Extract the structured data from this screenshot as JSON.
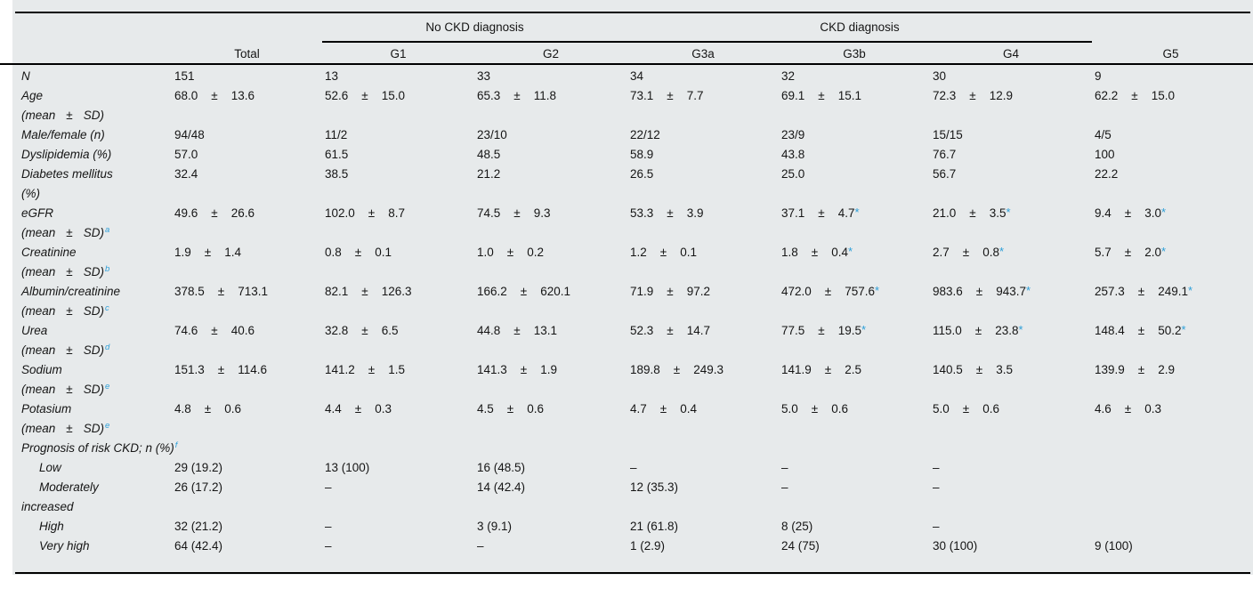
{
  "colors": {
    "accent_blue": "#2d9fd8",
    "table_background": "#e7eaeb",
    "rule": "#000000"
  },
  "table": {
    "pm_sign": "±",
    "dash": "–",
    "groups": [
      {
        "label": "No CKD diagnosis",
        "columns": [
          "G1",
          "G2"
        ]
      },
      {
        "label": "CKD diagnosis",
        "columns": [
          "G3a",
          "G3b",
          "G4"
        ]
      }
    ],
    "columns": [
      "Total",
      "G1",
      "G2",
      "G3a",
      "G3b",
      "G4",
      "G5"
    ],
    "rows": [
      {
        "label": "N",
        "cells": [
          {
            "t": "151"
          },
          {
            "t": "13"
          },
          {
            "t": "33"
          },
          {
            "t": "34"
          },
          {
            "t": "32"
          },
          {
            "t": "30"
          },
          {
            "t": "9"
          }
        ]
      },
      {
        "label": "Age",
        "label2": "(mean ± SD)",
        "cells": [
          {
            "m": "68.0",
            "sd": "13.6"
          },
          {
            "m": "52.6",
            "sd": "15.0"
          },
          {
            "m": "65.3",
            "sd": "11.8"
          },
          {
            "m": "73.1",
            "sd": "7.7"
          },
          {
            "m": "69.1",
            "sd": "15.1"
          },
          {
            "m": "72.3",
            "sd": "12.9"
          },
          {
            "m": "62.2",
            "sd": "15.0"
          }
        ]
      },
      {
        "label": "Male/female (n)",
        "cells": [
          {
            "t": "94/48"
          },
          {
            "t": "11/2"
          },
          {
            "t": "23/10"
          },
          {
            "t": "22/12"
          },
          {
            "t": "23/9"
          },
          {
            "t": "15/15"
          },
          {
            "t": "4/5"
          }
        ]
      },
      {
        "label": "Dyslipidemia (%)",
        "cells": [
          {
            "t": "57.0"
          },
          {
            "t": "61.5"
          },
          {
            "t": "48.5"
          },
          {
            "t": "58.9"
          },
          {
            "t": "43.8"
          },
          {
            "t": "76.7"
          },
          {
            "t": "100"
          }
        ]
      },
      {
        "label": "Diabetes mellitus",
        "label2": "(%)",
        "cells": [
          {
            "t": "32.4"
          },
          {
            "t": "38.5"
          },
          {
            "t": "21.2"
          },
          {
            "t": "26.5"
          },
          {
            "t": "25.0"
          },
          {
            "t": "56.7"
          },
          {
            "t": "22.2"
          }
        ]
      },
      {
        "label": "eGFR",
        "label2": "(mean ± SD)",
        "sup": "a",
        "cells": [
          {
            "m": "49.6",
            "sd": "26.6"
          },
          {
            "m": "102.0",
            "sd": "8.7"
          },
          {
            "m": "74.5",
            "sd": "9.3"
          },
          {
            "m": "53.3",
            "sd": "3.9"
          },
          {
            "m": "37.1",
            "sd": "4.7",
            "star": true
          },
          {
            "m": "21.0",
            "sd": "3.5",
            "star": true
          },
          {
            "m": "9.4",
            "sd": "3.0",
            "star": true
          }
        ]
      },
      {
        "label": "Creatinine",
        "label2": "(mean ± SD)",
        "sup": "b",
        "cells": [
          {
            "m": "1.9",
            "sd": "1.4"
          },
          {
            "m": "0.8",
            "sd": "0.1"
          },
          {
            "m": "1.0",
            "sd": "0.2"
          },
          {
            "m": "1.2",
            "sd": "0.1"
          },
          {
            "m": "1.8",
            "sd": "0.4",
            "star": true
          },
          {
            "m": "2.7",
            "sd": "0.8",
            "star": true
          },
          {
            "m": "5.7",
            "sd": "2.0",
            "star": true
          }
        ]
      },
      {
        "label": "Albumin/creatinine",
        "label2": "(mean ± SD)",
        "sup": "c",
        "cells": [
          {
            "m": "378.5",
            "sd": "713.1"
          },
          {
            "m": "82.1",
            "sd": "126.3"
          },
          {
            "m": "166.2",
            "sd": "620.1"
          },
          {
            "m": "71.9",
            "sd": "97.2"
          },
          {
            "m": "472.0",
            "sd": "757.6",
            "star": true
          },
          {
            "m": "983.6",
            "sd": "943.7",
            "star": true
          },
          {
            "m": "257.3",
            "sd": "249.1",
            "star": true
          }
        ]
      },
      {
        "label": "Urea",
        "label2": "(mean ± SD)",
        "sup": "d",
        "cells": [
          {
            "m": "74.6",
            "sd": "40.6"
          },
          {
            "m": "32.8",
            "sd": "6.5"
          },
          {
            "m": "44.8",
            "sd": "13.1"
          },
          {
            "m": "52.3",
            "sd": "14.7"
          },
          {
            "m": "77.5",
            "sd": "19.5",
            "star": true
          },
          {
            "m": "115.0",
            "sd": "23.8",
            "star": true
          },
          {
            "m": "148.4",
            "sd": "50.2",
            "star": true
          }
        ]
      },
      {
        "label": "Sodium",
        "label2": "(mean ± SD)",
        "sup": "e",
        "cells": [
          {
            "m": "151.3",
            "sd": "114.6"
          },
          {
            "m": "141.2",
            "sd": "1.5"
          },
          {
            "m": "141.3",
            "sd": "1.9"
          },
          {
            "m": "189.8",
            "sd": "249.3"
          },
          {
            "m": "141.9",
            "sd": "2.5"
          },
          {
            "m": "140.5",
            "sd": "3.5"
          },
          {
            "m": "139.9",
            "sd": "2.9"
          }
        ]
      },
      {
        "label": "Potasium",
        "label2": "(mean ± SD)",
        "sup": "e",
        "cells": [
          {
            "m": "4.8",
            "sd": "0.6"
          },
          {
            "m": "4.4",
            "sd": "0.3"
          },
          {
            "m": "4.5",
            "sd": "0.6"
          },
          {
            "m": "4.7",
            "sd": "0.4"
          },
          {
            "m": "5.0",
            "sd": "0.6"
          },
          {
            "m": "5.0",
            "sd": "0.6"
          },
          {
            "m": "4.6",
            "sd": "0.3"
          }
        ]
      },
      {
        "label": "Prognosis of risk CKD; n (%)",
        "sup": "f",
        "section": true,
        "cells": [
          null,
          null,
          null,
          null,
          null,
          null,
          null
        ]
      },
      {
        "label": "Low",
        "indent": true,
        "cells": [
          {
            "t": "29 (19.2)"
          },
          {
            "t": "13 (100)"
          },
          {
            "t": "16 (48.5)"
          },
          {
            "t": "–"
          },
          {
            "t": "–"
          },
          {
            "t": "–"
          },
          null
        ]
      },
      {
        "label": "Moderately",
        "label2": "increased",
        "indent": true,
        "cells": [
          {
            "t": "26 (17.2)"
          },
          {
            "t": "–"
          },
          {
            "t": "14 (42.4)"
          },
          {
            "t": "12 (35.3)"
          },
          {
            "t": "–"
          },
          {
            "t": "–"
          },
          null
        ]
      },
      {
        "label": "High",
        "indent": true,
        "cells": [
          {
            "t": "32 (21.2)"
          },
          {
            "t": "–"
          },
          {
            "t": "3 (9.1)"
          },
          {
            "t": "21 (61.8)"
          },
          {
            "t": "8 (25)"
          },
          {
            "t": "–"
          },
          null
        ]
      },
      {
        "label": "Very high",
        "indent": true,
        "cells": [
          {
            "t": "64 (42.4)"
          },
          {
            "t": "–"
          },
          {
            "t": "–"
          },
          {
            "t": "1 (2.9)"
          },
          {
            "t": "24 (75)"
          },
          {
            "t": "30 (100)"
          },
          {
            "t": "9 (100)"
          }
        ]
      }
    ]
  }
}
